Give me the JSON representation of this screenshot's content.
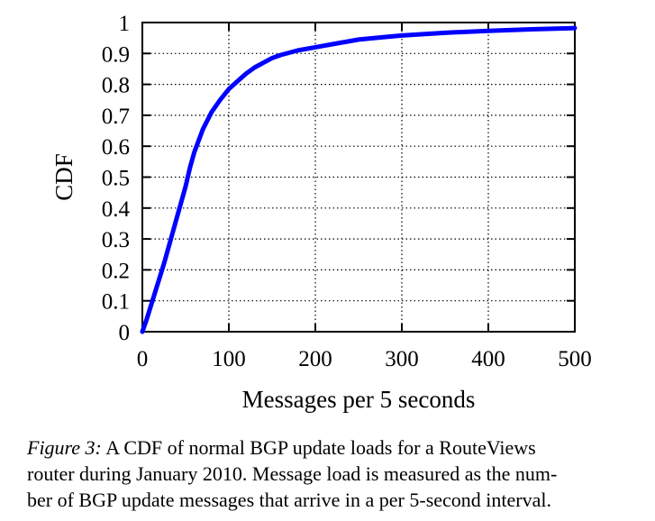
{
  "chart_data": {
    "type": "line",
    "xlabel": "Messages per 5 seconds",
    "ylabel": "CDF",
    "xlim": [
      0,
      500
    ],
    "ylim": [
      0,
      1
    ],
    "xticks": [
      0,
      100,
      200,
      300,
      400,
      500
    ],
    "xtick_labels": [
      "0",
      "100",
      "200",
      "300",
      "400",
      "500"
    ],
    "yticks": [
      0,
      0.1,
      0.2,
      0.3,
      0.4,
      0.5,
      0.6,
      0.7,
      0.8,
      0.9,
      1
    ],
    "ytick_labels": [
      "0",
      "0.1",
      "0.2",
      "0.3",
      "0.4",
      "0.5",
      "0.6",
      "0.7",
      "0.8",
      "0.9",
      "1"
    ],
    "grid": true,
    "grid_style": "dotted",
    "line_color": "#0000ff",
    "series": [
      {
        "x": [
          0,
          5,
          10,
          15,
          20,
          25,
          30,
          35,
          40,
          45,
          50,
          55,
          60,
          70,
          80,
          90,
          100,
          110,
          120,
          130,
          140,
          150,
          160,
          180,
          200,
          220,
          250,
          280,
          300,
          350,
          400,
          450,
          500
        ],
        "y": [
          0.0,
          0.04,
          0.085,
          0.13,
          0.175,
          0.22,
          0.27,
          0.32,
          0.37,
          0.42,
          0.47,
          0.53,
          0.58,
          0.655,
          0.71,
          0.75,
          0.785,
          0.81,
          0.835,
          0.855,
          0.87,
          0.885,
          0.895,
          0.91,
          0.92,
          0.93,
          0.945,
          0.953,
          0.958,
          0.967,
          0.973,
          0.978,
          0.982
        ]
      }
    ]
  },
  "caption": {
    "figure_label": "Figure 3:",
    "line1": "A CDF of normal BGP update loads for a RouteViews",
    "line2": "router during January 2010. Message load is measured as the num-",
    "line3": "ber of BGP update messages that arrive in a per 5-second interval."
  }
}
